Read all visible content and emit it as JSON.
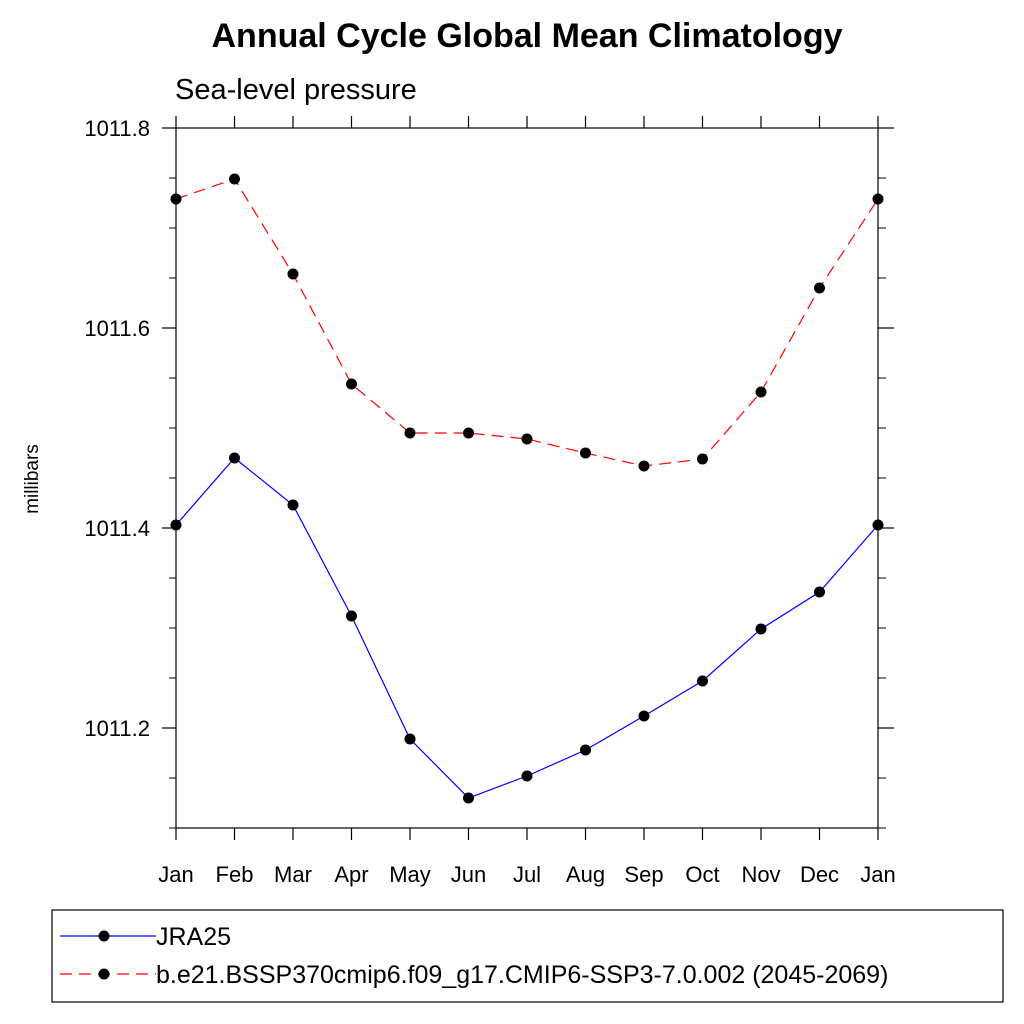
{
  "chart_data": {
    "type": "line",
    "title": "Annual Cycle Global Mean Climatology",
    "subtitle": "Sea-level pressure",
    "xlabel": "",
    "ylabel": "millibars",
    "categories": [
      "Jan",
      "Feb",
      "Mar",
      "Apr",
      "May",
      "Jun",
      "Jul",
      "Aug",
      "Sep",
      "Oct",
      "Nov",
      "Dec",
      "Jan"
    ],
    "ylim": [
      1011.1,
      1011.8
    ],
    "yticks": [
      1011.2,
      1011.4,
      1011.6,
      1011.8
    ],
    "ytick_labels": [
      "1011.2",
      "1011.4",
      "1011.6",
      "1011.8"
    ],
    "grid": false,
    "legend_position": "bottom",
    "series": [
      {
        "name": "JRA25",
        "color": "#0000ff",
        "dash": "solid",
        "marker": "circle",
        "values": [
          1011.403,
          1011.47,
          1011.423,
          1011.312,
          1011.189,
          1011.13,
          1011.152,
          1011.178,
          1011.212,
          1011.247,
          1011.299,
          1011.336,
          1011.403
        ]
      },
      {
        "name": "b.e21.BSSP370cmip6.f09_g17.CMIP6-SSP3-7.0.002 (2045-2069)",
        "color": "#ff0000",
        "dash": "dashed",
        "marker": "circle",
        "values": [
          1011.729,
          1011.749,
          1011.654,
          1011.544,
          1011.495,
          1011.495,
          1011.489,
          1011.475,
          1011.462,
          1011.469,
          1011.536,
          1011.64,
          1011.729
        ]
      }
    ]
  }
}
